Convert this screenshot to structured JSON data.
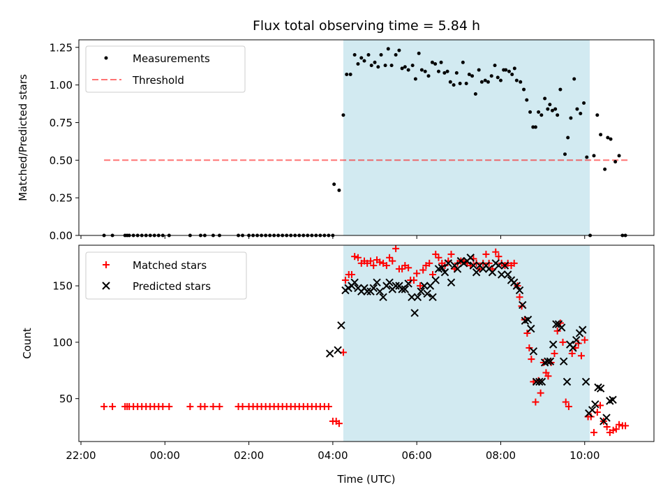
{
  "chart_data": {
    "title": "Flux total observing time = 5.84 h",
    "xlabel": "Time (UTC)",
    "xlim": [
      -2.05,
      11.65
    ],
    "xticks": [
      -2,
      0,
      2,
      4,
      6,
      8,
      10
    ],
    "xticklabels": [
      "22:00",
      "00:00",
      "02:00",
      "04:00",
      "06:00",
      "08:00",
      "10:00"
    ],
    "shaded_span": [
      4.25,
      10.12
    ],
    "colors": {
      "span": "#add8e6",
      "threshold": "#ff0000",
      "matched": "#ff0000",
      "predicted": "#000000",
      "measure": "#000000"
    },
    "top": {
      "type": "scatter",
      "ylabel": "Matched/Predicted stars",
      "ylim": [
        0,
        1.3
      ],
      "yticks": [
        0,
        0.25,
        0.5,
        0.75,
        1.0,
        1.25
      ],
      "yticklabels": [
        "0.00",
        "0.25",
        "0.50",
        "0.75",
        "1.00",
        "1.25"
      ],
      "legend": [
        "Measurements",
        "Threshold"
      ],
      "threshold": {
        "x": [
          -1.45,
          11.05
        ],
        "y": 0.5
      },
      "measurements": [
        [
          -1.45,
          0
        ],
        [
          -1.25,
          0
        ],
        [
          -0.95,
          0
        ],
        [
          -0.9,
          0
        ],
        [
          -0.85,
          0
        ],
        [
          -0.75,
          0
        ],
        [
          -0.65,
          0
        ],
        [
          -0.55,
          0
        ],
        [
          -0.45,
          0
        ],
        [
          -0.35,
          0
        ],
        [
          -0.25,
          0
        ],
        [
          -0.15,
          0
        ],
        [
          -0.05,
          0
        ],
        [
          0.1,
          0
        ],
        [
          0.6,
          0
        ],
        [
          0.85,
          0
        ],
        [
          0.95,
          0
        ],
        [
          1.15,
          0
        ],
        [
          1.3,
          0
        ],
        [
          1.75,
          0
        ],
        [
          1.85,
          0
        ],
        [
          2.0,
          0
        ],
        [
          2.1,
          0
        ],
        [
          2.2,
          0
        ],
        [
          2.3,
          0
        ],
        [
          2.4,
          0
        ],
        [
          2.5,
          0
        ],
        [
          2.6,
          0
        ],
        [
          2.7,
          0
        ],
        [
          2.8,
          0
        ],
        [
          2.9,
          0
        ],
        [
          3.0,
          0
        ],
        [
          3.1,
          0
        ],
        [
          3.2,
          0
        ],
        [
          3.3,
          0
        ],
        [
          3.4,
          0
        ],
        [
          3.5,
          0
        ],
        [
          3.6,
          0
        ],
        [
          3.7,
          0
        ],
        [
          3.8,
          0
        ],
        [
          3.9,
          0
        ],
        [
          4.0,
          0
        ],
        [
          4.03,
          0.34
        ],
        [
          4.15,
          0.3
        ],
        [
          4.25,
          0.8
        ],
        [
          4.33,
          1.07
        ],
        [
          4.42,
          1.07
        ],
        [
          4.52,
          1.2
        ],
        [
          4.6,
          1.14
        ],
        [
          4.68,
          1.18
        ],
        [
          4.75,
          1.16
        ],
        [
          4.85,
          1.2
        ],
        [
          4.92,
          1.13
        ],
        [
          5.0,
          1.15
        ],
        [
          5.08,
          1.12
        ],
        [
          5.15,
          1.2
        ],
        [
          5.25,
          1.13
        ],
        [
          5.32,
          1.24
        ],
        [
          5.4,
          1.13
        ],
        [
          5.5,
          1.2
        ],
        [
          5.58,
          1.23
        ],
        [
          5.65,
          1.11
        ],
        [
          5.72,
          1.12
        ],
        [
          5.8,
          1.1
        ],
        [
          5.9,
          1.13
        ],
        [
          5.97,
          1.04
        ],
        [
          6.05,
          1.21
        ],
        [
          6.12,
          1.1
        ],
        [
          6.2,
          1.09
        ],
        [
          6.28,
          1.06
        ],
        [
          6.37,
          1.15
        ],
        [
          6.44,
          1.14
        ],
        [
          6.52,
          1.09
        ],
        [
          6.58,
          1.15
        ],
        [
          6.66,
          1.08
        ],
        [
          6.73,
          1.09
        ],
        [
          6.8,
          1.02
        ],
        [
          6.88,
          1.0
        ],
        [
          6.95,
          1.08
        ],
        [
          7.03,
          1.01
        ],
        [
          7.1,
          1.15
        ],
        [
          7.18,
          1.01
        ],
        [
          7.25,
          1.07
        ],
        [
          7.32,
          1.06
        ],
        [
          7.4,
          0.94
        ],
        [
          7.48,
          1.1
        ],
        [
          7.55,
          1.02
        ],
        [
          7.63,
          1.03
        ],
        [
          7.7,
          1.02
        ],
        [
          7.78,
          1.06
        ],
        [
          7.86,
          1.13
        ],
        [
          7.93,
          1.05
        ],
        [
          8.0,
          1.03
        ],
        [
          8.07,
          1.1
        ],
        [
          8.12,
          1.1
        ],
        [
          8.2,
          1.09
        ],
        [
          8.27,
          1.07
        ],
        [
          8.33,
          1.11
        ],
        [
          8.38,
          1.03
        ],
        [
          8.47,
          1.02
        ],
        [
          8.55,
          0.97
        ],
        [
          8.62,
          0.9
        ],
        [
          8.7,
          0.82
        ],
        [
          8.77,
          0.72
        ],
        [
          8.83,
          0.72
        ],
        [
          8.9,
          0.82
        ],
        [
          8.97,
          0.8
        ],
        [
          9.05,
          0.91
        ],
        [
          9.12,
          0.84
        ],
        [
          9.17,
          0.87
        ],
        [
          9.23,
          0.83
        ],
        [
          9.3,
          0.84
        ],
        [
          9.35,
          0.8
        ],
        [
          9.42,
          0.97
        ],
        [
          9.53,
          0.54
        ],
        [
          9.6,
          0.65
        ],
        [
          9.67,
          0.78
        ],
        [
          9.75,
          1.04
        ],
        [
          9.82,
          0.84
        ],
        [
          9.9,
          0.81
        ],
        [
          9.98,
          0.88
        ],
        [
          10.05,
          0.52
        ],
        [
          10.13,
          0
        ],
        [
          10.22,
          0.53
        ],
        [
          10.3,
          0.8
        ],
        [
          10.38,
          0.67
        ],
        [
          10.48,
          0.44
        ],
        [
          10.55,
          0.65
        ],
        [
          10.62,
          0.64
        ],
        [
          10.73,
          0.49
        ],
        [
          10.82,
          0.53
        ],
        [
          10.9,
          0
        ],
        [
          10.97,
          0
        ]
      ]
    },
    "bottom": {
      "type": "scatter",
      "ylabel": "Count",
      "ylim": [
        12,
        186
      ],
      "yticks": [
        50,
        100,
        150
      ],
      "yticklabels": [
        "50",
        "100",
        "150"
      ],
      "legend": [
        "Matched stars",
        "Predicted stars"
      ],
      "matched": [
        [
          -1.45,
          43
        ],
        [
          -1.25,
          43
        ],
        [
          -0.95,
          43
        ],
        [
          -0.9,
          43
        ],
        [
          -0.85,
          43
        ],
        [
          -0.75,
          43
        ],
        [
          -0.65,
          43
        ],
        [
          -0.55,
          43
        ],
        [
          -0.45,
          43
        ],
        [
          -0.35,
          43
        ],
        [
          -0.25,
          43
        ],
        [
          -0.15,
          43
        ],
        [
          -0.05,
          43
        ],
        [
          0.1,
          43
        ],
        [
          0.6,
          43
        ],
        [
          0.85,
          43
        ],
        [
          0.95,
          43
        ],
        [
          1.15,
          43
        ],
        [
          1.3,
          43
        ],
        [
          1.75,
          43
        ],
        [
          1.85,
          43
        ],
        [
          2.0,
          43
        ],
        [
          2.1,
          43
        ],
        [
          2.2,
          43
        ],
        [
          2.3,
          43
        ],
        [
          2.4,
          43
        ],
        [
          2.5,
          43
        ],
        [
          2.6,
          43
        ],
        [
          2.7,
          43
        ],
        [
          2.8,
          43
        ],
        [
          2.9,
          43
        ],
        [
          3.0,
          43
        ],
        [
          3.1,
          43
        ],
        [
          3.2,
          43
        ],
        [
          3.3,
          43
        ],
        [
          3.4,
          43
        ],
        [
          3.5,
          43
        ],
        [
          3.6,
          43
        ],
        [
          3.7,
          43
        ],
        [
          3.8,
          43
        ],
        [
          3.9,
          43
        ],
        [
          4.0,
          30
        ],
        [
          4.08,
          30
        ],
        [
          4.15,
          28
        ],
        [
          4.25,
          91
        ],
        [
          4.3,
          155
        ],
        [
          4.38,
          160
        ],
        [
          4.45,
          160
        ],
        [
          4.52,
          176
        ],
        [
          4.6,
          175
        ],
        [
          4.68,
          170
        ],
        [
          4.75,
          172
        ],
        [
          4.82,
          170
        ],
        [
          4.9,
          172
        ],
        [
          4.97,
          168
        ],
        [
          5.05,
          173
        ],
        [
          5.12,
          171
        ],
        [
          5.2,
          170
        ],
        [
          5.28,
          168
        ],
        [
          5.35,
          175
        ],
        [
          5.42,
          172
        ],
        [
          5.5,
          183
        ],
        [
          5.58,
          165
        ],
        [
          5.65,
          165
        ],
        [
          5.72,
          168
        ],
        [
          5.8,
          166
        ],
        [
          5.85,
          155
        ],
        [
          5.93,
          155
        ],
        [
          6.0,
          161
        ],
        [
          6.08,
          150
        ],
        [
          6.15,
          164
        ],
        [
          6.22,
          168
        ],
        [
          6.3,
          170
        ],
        [
          6.38,
          160
        ],
        [
          6.45,
          178
        ],
        [
          6.52,
          175
        ],
        [
          6.6,
          170
        ],
        [
          6.67,
          168
        ],
        [
          6.75,
          172
        ],
        [
          6.82,
          178
        ],
        [
          6.9,
          165
        ],
        [
          6.97,
          170
        ],
        [
          7.05,
          172
        ],
        [
          7.12,
          172
        ],
        [
          7.2,
          170
        ],
        [
          7.28,
          168
        ],
        [
          7.35,
          174
        ],
        [
          7.42,
          170
        ],
        [
          7.5,
          165
        ],
        [
          7.58,
          170
        ],
        [
          7.65,
          178
        ],
        [
          7.72,
          170
        ],
        [
          7.8,
          165
        ],
        [
          7.88,
          180
        ],
        [
          7.95,
          176
        ],
        [
          8.02,
          170
        ],
        [
          8.1,
          168
        ],
        [
          8.17,
          170
        ],
        [
          8.25,
          168
        ],
        [
          8.32,
          170
        ],
        [
          8.4,
          150
        ],
        [
          8.45,
          140
        ],
        [
          8.5,
          132
        ],
        [
          8.57,
          120
        ],
        [
          8.63,
          108
        ],
        [
          8.68,
          95
        ],
        [
          8.73,
          85
        ],
        [
          8.78,
          65
        ],
        [
          8.83,
          47
        ],
        [
          8.9,
          66
        ],
        [
          8.95,
          55
        ],
        [
          9.02,
          82
        ],
        [
          9.08,
          73
        ],
        [
          9.13,
          70
        ],
        [
          9.2,
          82
        ],
        [
          9.28,
          90
        ],
        [
          9.35,
          110
        ],
        [
          9.42,
          117
        ],
        [
          9.48,
          100
        ],
        [
          9.55,
          47
        ],
        [
          9.62,
          43
        ],
        [
          9.7,
          90
        ],
        [
          9.78,
          95
        ],
        [
          9.85,
          99
        ],
        [
          9.92,
          88
        ],
        [
          10.0,
          102
        ],
        [
          10.08,
          34
        ],
        [
          10.15,
          34
        ],
        [
          10.22,
          20
        ],
        [
          10.3,
          38
        ],
        [
          10.37,
          44
        ],
        [
          10.45,
          30
        ],
        [
          10.53,
          25
        ],
        [
          10.6,
          20
        ],
        [
          10.68,
          22
        ],
        [
          10.75,
          23
        ],
        [
          10.82,
          27
        ],
        [
          10.9,
          26
        ],
        [
          10.97,
          26
        ]
      ],
      "predicted": [
        [
          3.93,
          90
        ],
        [
          4.12,
          93
        ],
        [
          4.2,
          115
        ],
        [
          4.3,
          146
        ],
        [
          4.37,
          148
        ],
        [
          4.45,
          150
        ],
        [
          4.52,
          153
        ],
        [
          4.6,
          148
        ],
        [
          4.68,
          145
        ],
        [
          4.75,
          148
        ],
        [
          4.82,
          145
        ],
        [
          4.9,
          145
        ],
        [
          4.97,
          148
        ],
        [
          5.05,
          153
        ],
        [
          5.12,
          145
        ],
        [
          5.2,
          140
        ],
        [
          5.28,
          150
        ],
        [
          5.35,
          153
        ],
        [
          5.42,
          147
        ],
        [
          5.5,
          150
        ],
        [
          5.58,
          150
        ],
        [
          5.65,
          147
        ],
        [
          5.72,
          147
        ],
        [
          5.8,
          152
        ],
        [
          5.88,
          140
        ],
        [
          5.95,
          126
        ],
        [
          6.02,
          140
        ],
        [
          6.1,
          145
        ],
        [
          6.18,
          150
        ],
        [
          6.25,
          143
        ],
        [
          6.32,
          150
        ],
        [
          6.38,
          140
        ],
        [
          6.45,
          155
        ],
        [
          6.52,
          165
        ],
        [
          6.6,
          166
        ],
        [
          6.67,
          162
        ],
        [
          6.75,
          170
        ],
        [
          6.82,
          153
        ],
        [
          6.9,
          168
        ],
        [
          6.97,
          165
        ],
        [
          7.05,
          172
        ],
        [
          7.12,
          170
        ],
        [
          7.2,
          172
        ],
        [
          7.28,
          175
        ],
        [
          7.35,
          168
        ],
        [
          7.42,
          162
        ],
        [
          7.5,
          168
        ],
        [
          7.58,
          165
        ],
        [
          7.65,
          168
        ],
        [
          7.72,
          165
        ],
        [
          7.8,
          162
        ],
        [
          7.88,
          170
        ],
        [
          7.95,
          168
        ],
        [
          8.02,
          160
        ],
        [
          8.1,
          168
        ],
        [
          8.17,
          160
        ],
        [
          8.25,
          155
        ],
        [
          8.32,
          153
        ],
        [
          8.38,
          150
        ],
        [
          8.45,
          146
        ],
        [
          8.52,
          133
        ],
        [
          8.58,
          119
        ],
        [
          8.65,
          120
        ],
        [
          8.72,
          112
        ],
        [
          8.78,
          92
        ],
        [
          8.85,
          65
        ],
        [
          8.92,
          65
        ],
        [
          8.98,
          65
        ],
        [
          9.05,
          82
        ],
        [
          9.12,
          83
        ],
        [
          9.18,
          83
        ],
        [
          9.25,
          98
        ],
        [
          9.32,
          116
        ],
        [
          9.38,
          116
        ],
        [
          9.45,
          113
        ],
        [
          9.5,
          83
        ],
        [
          9.58,
          65
        ],
        [
          9.65,
          98
        ],
        [
          9.72,
          95
        ],
        [
          9.8,
          102
        ],
        [
          9.88,
          108
        ],
        [
          9.95,
          111
        ],
        [
          10.03,
          65
        ],
        [
          10.1,
          37
        ],
        [
          10.18,
          40
        ],
        [
          10.25,
          45
        ],
        [
          10.32,
          60
        ],
        [
          10.38,
          59
        ],
        [
          10.45,
          30
        ],
        [
          10.52,
          33
        ],
        [
          10.6,
          48
        ],
        [
          10.67,
          49
        ]
      ]
    }
  }
}
